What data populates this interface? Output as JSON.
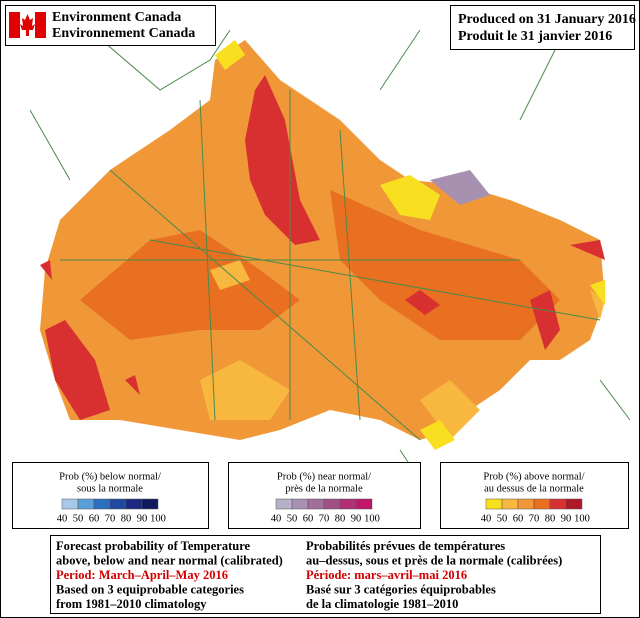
{
  "header": {
    "agency_en": "Environment Canada",
    "agency_fr": "Environnement Canada",
    "produced_en": "Produced on 31 January 2016",
    "produced_fr": "Produit le 31 janvier 2016"
  },
  "legends": [
    {
      "title_en": "Prob (%) below normal/",
      "title_fr": "sous la normale",
      "colors": [
        "#a8c8e8",
        "#5aa0d8",
        "#2f6fc0",
        "#2348a0",
        "#1a2a80",
        "#101860"
      ],
      "labels": [
        "40",
        "50",
        "60",
        "70",
        "80",
        "90",
        "100"
      ]
    },
    {
      "title_en": "Prob (%) near normal/",
      "title_fr": "près de la normale",
      "colors": [
        "#b8b0c8",
        "#a890b0",
        "#a07098",
        "#a05088",
        "#b03078",
        "#c01868"
      ],
      "labels": [
        "40",
        "50",
        "60",
        "70",
        "80",
        "90",
        "100"
      ]
    },
    {
      "title_en": "Prob (%) above normal/",
      "title_fr": "au dessus de la normale",
      "colors": [
        "#f8e020",
        "#f8b840",
        "#f09838",
        "#e87020",
        "#d83030",
        "#b01828"
      ],
      "labels": [
        "40",
        "50",
        "60",
        "70",
        "80",
        "90",
        "100"
      ]
    }
  ],
  "footer": {
    "left": [
      "Forecast probability of Temperature",
      "above, below and near normal (calibrated)",
      "Period: March–April–May 2016",
      "Based on 3 equiprobable categories",
      " from 1981–2010 climatology"
    ],
    "right": [
      "Probabilités prévues de températures",
      "au–dessus, sous et près de la normale (calibrées)",
      "Période: mars–avril–mai 2016",
      "Basé sur 3 catégories équiprobables",
      "de la climatologie 1981–2010"
    ]
  }
}
